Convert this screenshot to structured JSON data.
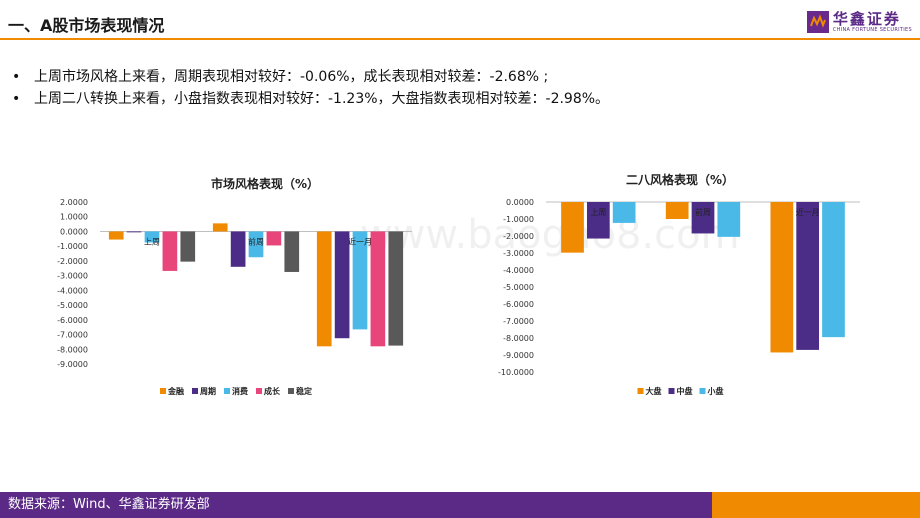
{
  "header": {
    "title": "一、A股市场表现情况"
  },
  "logo": {
    "cn": "华鑫证券",
    "en": "CHINA FORTUNE SECURITIES"
  },
  "bullets": [
    "上周市场风格上来看，周期表现相对较好：-0.06%，成长表现相对较差：-2.68% ;",
    "上周二八转换上来看，小盘指数表现相对较好：-1.23%，大盘指数表现相对较差：-2.98%。"
  ],
  "watermark": "www.baogao8.com",
  "footer": {
    "source": "数据来源：Wind、华鑫证券研发部"
  },
  "colors": {
    "accent": "#f08a00",
    "brand": "#5b2a86"
  },
  "chart_data": [
    {
      "type": "bar",
      "title": "市场风格表现（%）",
      "categories": [
        "上周",
        "前周",
        "近一月"
      ],
      "series": [
        {
          "name": "金融",
          "color": "#f08a00",
          "values": [
            -0.55,
            0.55,
            -7.8
          ]
        },
        {
          "name": "周期",
          "color": "#4b2c86",
          "values": [
            -0.06,
            -2.4,
            -7.25
          ]
        },
        {
          "name": "消费",
          "color": "#4ab9e8",
          "values": [
            -0.75,
            -1.75,
            -6.65
          ]
        },
        {
          "name": "成长",
          "color": "#e8457a",
          "values": [
            -2.68,
            -0.95,
            -7.8
          ]
        },
        {
          "name": "稳定",
          "color": "#595959",
          "values": [
            -2.05,
            -2.75,
            -7.75
          ]
        }
      ],
      "yticks": [
        "2.0000",
        "1.0000",
        "0.0000",
        "-1.0000",
        "-2.0000",
        "-3.0000",
        "-4.0000",
        "-5.0000",
        "-6.0000",
        "-7.0000",
        "-8.0000",
        "-9.0000"
      ],
      "ylim": [
        -9,
        2
      ],
      "legend": "bottom"
    },
    {
      "type": "bar",
      "title": "二八风格表现（%）",
      "categories": [
        "上周",
        "前周",
        "近一月"
      ],
      "series": [
        {
          "name": "大盘",
          "color": "#f08a00",
          "values": [
            -2.98,
            -1.0,
            -8.85
          ]
        },
        {
          "name": "中盘",
          "color": "#4b2c86",
          "values": [
            -2.15,
            -1.85,
            -8.7
          ]
        },
        {
          "name": "小盘",
          "color": "#4ab9e8",
          "values": [
            -1.23,
            -2.05,
            -7.95
          ]
        }
      ],
      "yticks": [
        "0.0000",
        "-1.0000",
        "-2.0000",
        "-3.0000",
        "-4.0000",
        "-5.0000",
        "-6.0000",
        "-7.0000",
        "-8.0000",
        "-9.0000",
        "-10.0000"
      ],
      "ylim": [
        -10,
        0
      ],
      "legend": "bottom"
    }
  ]
}
